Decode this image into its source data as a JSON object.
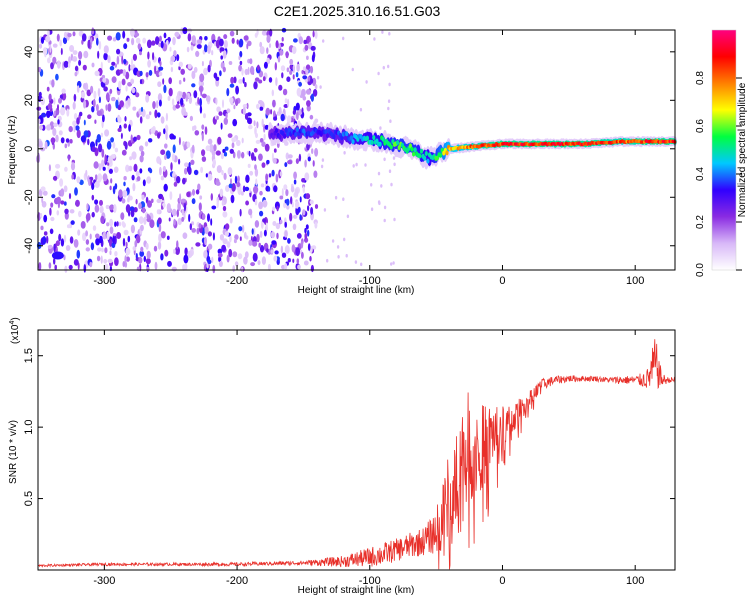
{
  "page_title": "C2E1.2025.310.16.51.G03",
  "chart_data": [
    {
      "type": "heatmap",
      "title": "C2E1.2025.310.16.51.G03",
      "xlabel": "Height of straight line (km)",
      "ylabel": "Frequency (Hz)",
      "xlim": [
        -350,
        130
      ],
      "ylim": [
        -50,
        49
      ],
      "x_ticks": [
        -300,
        -200,
        -100,
        0,
        100
      ],
      "y_ticks": [
        -40,
        -20,
        0,
        20,
        40
      ],
      "colorbar": {
        "label": "Normalized spectral amplitude",
        "range": [
          0.0,
          1.0
        ],
        "ticks": [
          0.0,
          0.2,
          0.4,
          0.6,
          0.8
        ],
        "colors": [
          "#ffffff",
          "#d8b8f8",
          "#8a2be2",
          "#3000ff",
          "#00c8ff",
          "#00ff40",
          "#ffff00",
          "#ff8000",
          "#ff0000",
          "#ff0080"
        ]
      },
      "noise_region_x": [
        -350,
        -140
      ],
      "signal_trace": {
        "x": [
          -175,
          -150,
          -130,
          -110,
          -90,
          -70,
          -55,
          -40,
          -20,
          0,
          20,
          60,
          90,
          110,
          130
        ],
        "freq": [
          6,
          7,
          6,
          4,
          3,
          0,
          -4,
          0,
          1,
          2,
          2,
          2,
          3,
          3,
          3
        ],
        "amplitude": [
          0.3,
          0.4,
          0.35,
          0.45,
          0.55,
          0.6,
          0.5,
          0.75,
          0.85,
          0.9,
          0.9,
          0.9,
          0.85,
          0.9,
          0.9
        ]
      }
    },
    {
      "type": "line",
      "xlabel": "Height of straight line (km)",
      "ylabel": "SNR (10 * v/v)",
      "y_scale_label": "(x10",
      "y_scale_exp": "4",
      "y_scale_close": ")",
      "xlim": [
        -350,
        130
      ],
      "ylim": [
        0,
        1.68
      ],
      "x_ticks": [
        -300,
        -200,
        -100,
        0,
        100
      ],
      "y_ticks": [
        0.5,
        1.0,
        1.5
      ],
      "y_tick_labels": [
        "0.5",
        "1.0",
        "1.5"
      ],
      "color": "#e8302a",
      "series": [
        {
          "name": "SNR",
          "x": [
            -350,
            -300,
            -250,
            -200,
            -150,
            -120,
            -100,
            -90,
            -80,
            -70,
            -60,
            -55,
            -50,
            -45,
            -40,
            -35,
            -30,
            -25,
            -20,
            -15,
            -10,
            -5,
            0,
            5,
            10,
            15,
            20,
            25,
            30,
            40,
            50,
            60,
            70,
            80,
            90,
            100,
            105,
            110,
            115,
            120,
            125,
            130
          ],
          "y": [
            0.03,
            0.04,
            0.04,
            0.04,
            0.05,
            0.06,
            0.09,
            0.11,
            0.14,
            0.17,
            0.2,
            0.23,
            0.27,
            0.36,
            0.5,
            0.62,
            0.78,
            0.85,
            0.9,
            0.86,
            0.92,
            0.98,
            1.0,
            1.03,
            1.08,
            1.14,
            1.2,
            1.25,
            1.3,
            1.33,
            1.34,
            1.34,
            1.34,
            1.33,
            1.33,
            1.33,
            1.33,
            1.34,
            1.45,
            1.33,
            1.33,
            1.33
          ],
          "amp": [
            0.008,
            0.01,
            0.01,
            0.012,
            0.015,
            0.04,
            0.07,
            0.08,
            0.08,
            0.09,
            0.1,
            0.12,
            0.16,
            0.25,
            0.35,
            0.42,
            0.45,
            0.4,
            0.35,
            0.3,
            0.25,
            0.2,
            0.15,
            0.12,
            0.1,
            0.08,
            0.06,
            0.05,
            0.04,
            0.03,
            0.025,
            0.02,
            0.02,
            0.02,
            0.03,
            0.03,
            0.05,
            0.08,
            0.2,
            0.05,
            0.02,
            0.02
          ]
        }
      ]
    }
  ]
}
